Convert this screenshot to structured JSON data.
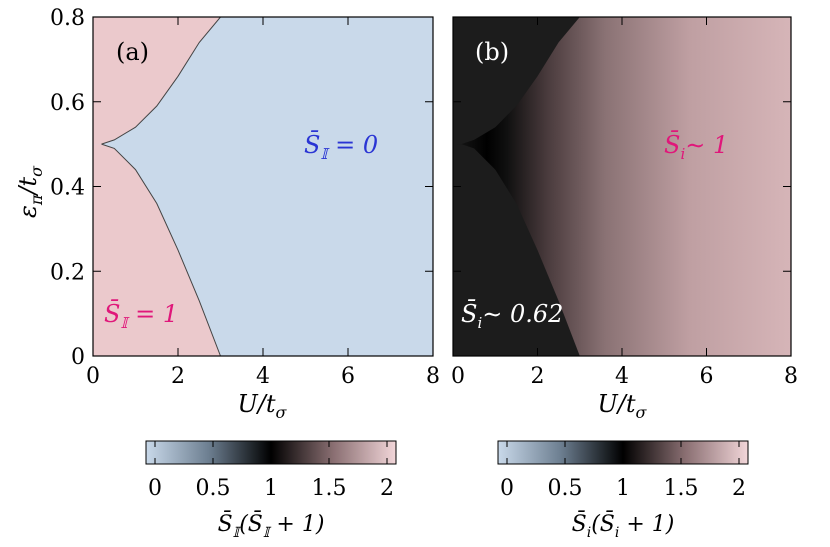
{
  "chart_data": [
    {
      "type": "heatmap",
      "panel": "(a)",
      "xlabel": "U/t_σ",
      "ylabel": "ε_π/t_σ",
      "xlim": [
        0,
        8
      ],
      "ylim": [
        0,
        0.8
      ],
      "xticks": [
        "0",
        "2",
        "4",
        "6",
        "8"
      ],
      "yticks": [
        "0",
        "0.2",
        "0.4",
        "0.6",
        "0.8"
      ],
      "boundary": {
        "name": "phase boundary",
        "upper": {
          "U": [
            0.2,
            0.5,
            1.0,
            1.5,
            2.0,
            2.5,
            3.0
          ],
          "eps": [
            0.5,
            0.51,
            0.54,
            0.59,
            0.66,
            0.74,
            0.8
          ]
        },
        "lower": {
          "U": [
            0.2,
            0.5,
            1.0,
            1.5,
            2.0,
            2.5,
            3.0
          ],
          "eps": [
            0.5,
            0.49,
            0.44,
            0.36,
            0.25,
            0.13,
            0.0
          ]
        }
      },
      "regions": [
        {
          "label": "S̄𝕀 = 1",
          "value": 2,
          "color": "#ebc9cc"
        },
        {
          "label": "S̄𝕀 = 0",
          "value": 0,
          "color": "#c9d9ea"
        }
      ],
      "colorbar": {
        "label": "S̄𝕀(S̄𝕀 + 1)",
        "ticks": [
          "0",
          "0.5",
          "1",
          "1.5",
          "2"
        ],
        "range": [
          0,
          2
        ]
      }
    },
    {
      "type": "heatmap",
      "panel": "(b)",
      "xlabel": "U/t_σ",
      "xlim": [
        0,
        8
      ],
      "ylim": [
        0,
        0.8
      ],
      "xticks": [
        "0",
        "2",
        "4",
        "6",
        "8"
      ],
      "regions": [
        {
          "label": "S̄i ∼ 0.62",
          "value": 1.0,
          "color": "#000000"
        },
        {
          "label": "S̄i ∼ 1",
          "value": 2,
          "color": "#d9b8bb"
        }
      ],
      "colorbar": {
        "label": "S̄i(S̄i + 1)",
        "ticks": [
          "0",
          "0.5",
          "1",
          "1.5",
          "2"
        ],
        "range": [
          0,
          2
        ]
      }
    }
  ],
  "colors": {
    "low": "#c9d9ea",
    "mid": "#000000",
    "high": "#f2d6d9",
    "label_pink": "#e0177a",
    "label_blue": "#2a35d4",
    "label_white": "#ffffff"
  },
  "labels": {
    "panel_a": "(a)",
    "panel_b": "(b)",
    "anno_a_upper_right": "0",
    "anno_a_lower_left": "1",
    "anno_b_left": "∼ 0.62",
    "anno_b_right": "∼ 1"
  }
}
